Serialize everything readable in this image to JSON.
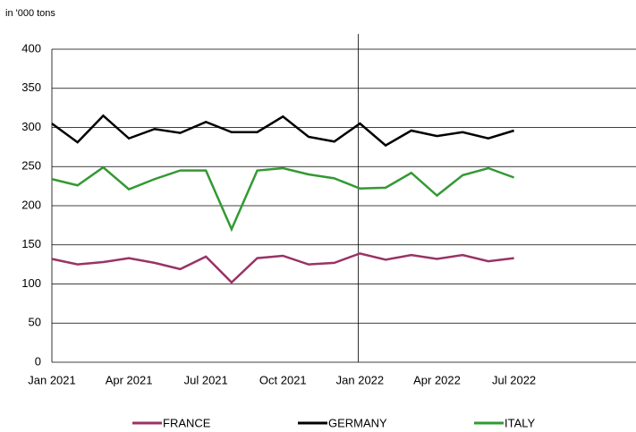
{
  "chart_data": {
    "type": "line",
    "y_label": "in '000 tons",
    "categories": [
      "Jan 2021",
      null,
      null,
      "Apr 2021",
      null,
      null,
      "Jul 2021",
      null,
      null,
      "Oct 2021",
      null,
      null,
      "Jan 2022",
      null,
      null,
      "Apr 2022",
      null,
      null,
      "Jul 2022",
      null,
      null,
      null,
      null,
      null
    ],
    "series": [
      {
        "name": "FRANCE",
        "color": "#993366",
        "values": [
          132,
          125,
          128,
          133,
          127,
          119,
          135,
          102,
          133,
          136,
          125,
          127,
          139,
          131,
          137,
          132,
          137,
          129,
          133,
          null,
          null,
          null,
          null,
          null
        ]
      },
      {
        "name": "GERMANY",
        "color": "#000000",
        "values": [
          305,
          281,
          315,
          286,
          298,
          293,
          307,
          294,
          294,
          314,
          288,
          282,
          305,
          277,
          296,
          289,
          294,
          286,
          296,
          null,
          null,
          null,
          null,
          null
        ]
      },
      {
        "name": "ITALY",
        "color": "#339933",
        "values": [
          234,
          226,
          249,
          221,
          234,
          245,
          245,
          170,
          245,
          248,
          240,
          235,
          222,
          223,
          242,
          213,
          239,
          248,
          236,
          null,
          null,
          null,
          null,
          null
        ]
      }
    ],
    "ylim": [
      0,
      400
    ],
    "yticks": [
      0,
      50,
      100,
      150,
      200,
      250,
      300,
      350,
      400
    ],
    "grid": true,
    "legend": "bottom"
  }
}
